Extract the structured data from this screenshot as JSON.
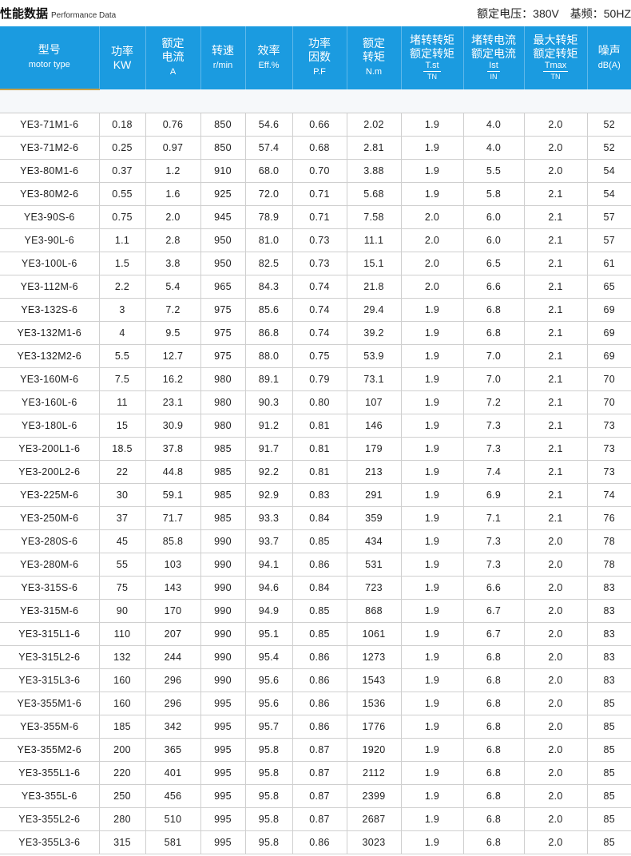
{
  "title": {
    "cn": "性能数据",
    "en": "Performance Data"
  },
  "spec": {
    "voltage": "额定电压：380V",
    "frequency": "基频：50HZ"
  },
  "header": [
    {
      "lines": [
        "型号"
      ],
      "unit": "motor type"
    },
    {
      "lines": [
        "功率",
        "KW"
      ],
      "unit": ""
    },
    {
      "lines": [
        "额定",
        "电流"
      ],
      "unit": "A"
    },
    {
      "lines": [
        "转速"
      ],
      "unit": "r/min"
    },
    {
      "lines": [
        "效率"
      ],
      "unit": "Eff.%"
    },
    {
      "lines": [
        "功率",
        "因数"
      ],
      "unit": "P.F"
    },
    {
      "lines": [
        "额定",
        "转矩"
      ],
      "unit": "N.m"
    },
    {
      "lines": [
        "堵转转矩",
        "额定转矩"
      ],
      "num": "T.st",
      "den": "TN"
    },
    {
      "lines": [
        "堵转电流",
        "额定电流"
      ],
      "num": "Ist",
      "den": "IN"
    },
    {
      "lines": [
        "最大转矩",
        "额定转矩"
      ],
      "num": "Tmax",
      "den": "TN"
    },
    {
      "lines": [
        "噪声"
      ],
      "unit": "dB(A)"
    }
  ],
  "rows": [
    [
      "YE3-71M1-6",
      "0.18",
      "0.76",
      "850",
      "54.6",
      "0.66",
      "2.02",
      "1.9",
      "4.0",
      "2.0",
      "52"
    ],
    [
      "YE3-71M2-6",
      "0.25",
      "0.97",
      "850",
      "57.4",
      "0.68",
      "2.81",
      "1.9",
      "4.0",
      "2.0",
      "52"
    ],
    [
      "YE3-80M1-6",
      "0.37",
      "1.2",
      "910",
      "68.0",
      "0.70",
      "3.88",
      "1.9",
      "5.5",
      "2.0",
      "54"
    ],
    [
      "YE3-80M2-6",
      "0.55",
      "1.6",
      "925",
      "72.0",
      "0.71",
      "5.68",
      "1.9",
      "5.8",
      "2.1",
      "54"
    ],
    [
      "YE3-90S-6",
      "0.75",
      "2.0",
      "945",
      "78.9",
      "0.71",
      "7.58",
      "2.0",
      "6.0",
      "2.1",
      "57"
    ],
    [
      "YE3-90L-6",
      "1.1",
      "2.8",
      "950",
      "81.0",
      "0.73",
      "11.1",
      "2.0",
      "6.0",
      "2.1",
      "57"
    ],
    [
      "YE3-100L-6",
      "1.5",
      "3.8",
      "950",
      "82.5",
      "0.73",
      "15.1",
      "2.0",
      "6.5",
      "2.1",
      "61"
    ],
    [
      "YE3-112M-6",
      "2.2",
      "5.4",
      "965",
      "84.3",
      "0.74",
      "21.8",
      "2.0",
      "6.6",
      "2.1",
      "65"
    ],
    [
      "YE3-132S-6",
      "3",
      "7.2",
      "975",
      "85.6",
      "0.74",
      "29.4",
      "1.9",
      "6.8",
      "2.1",
      "69"
    ],
    [
      "YE3-132M1-6",
      "4",
      "9.5",
      "975",
      "86.8",
      "0.74",
      "39.2",
      "1.9",
      "6.8",
      "2.1",
      "69"
    ],
    [
      "YE3-132M2-6",
      "5.5",
      "12.7",
      "975",
      "88.0",
      "0.75",
      "53.9",
      "1.9",
      "7.0",
      "2.1",
      "69"
    ],
    [
      "YE3-160M-6",
      "7.5",
      "16.2",
      "980",
      "89.1",
      "0.79",
      "73.1",
      "1.9",
      "7.0",
      "2.1",
      "70"
    ],
    [
      "YE3-160L-6",
      "11",
      "23.1",
      "980",
      "90.3",
      "0.80",
      "107",
      "1.9",
      "7.2",
      "2.1",
      "70"
    ],
    [
      "YE3-180L-6",
      "15",
      "30.9",
      "980",
      "91.2",
      "0.81",
      "146",
      "1.9",
      "7.3",
      "2.1",
      "73"
    ],
    [
      "YE3-200L1-6",
      "18.5",
      "37.8",
      "985",
      "91.7",
      "0.81",
      "179",
      "1.9",
      "7.3",
      "2.1",
      "73"
    ],
    [
      "YE3-200L2-6",
      "22",
      "44.8",
      "985",
      "92.2",
      "0.81",
      "213",
      "1.9",
      "7.4",
      "2.1",
      "73"
    ],
    [
      "YE3-225M-6",
      "30",
      "59.1",
      "985",
      "92.9",
      "0.83",
      "291",
      "1.9",
      "6.9",
      "2.1",
      "74"
    ],
    [
      "YE3-250M-6",
      "37",
      "71.7",
      "985",
      "93.3",
      "0.84",
      "359",
      "1.9",
      "7.1",
      "2.1",
      "76"
    ],
    [
      "YE3-280S-6",
      "45",
      "85.8",
      "990",
      "93.7",
      "0.85",
      "434",
      "1.9",
      "7.3",
      "2.0",
      "78"
    ],
    [
      "YE3-280M-6",
      "55",
      "103",
      "990",
      "94.1",
      "0.86",
      "531",
      "1.9",
      "7.3",
      "2.0",
      "78"
    ],
    [
      "YE3-315S-6",
      "75",
      "143",
      "990",
      "94.6",
      "0.84",
      "723",
      "1.9",
      "6.6",
      "2.0",
      "83"
    ],
    [
      "YE3-315M-6",
      "90",
      "170",
      "990",
      "94.9",
      "0.85",
      "868",
      "1.9",
      "6.7",
      "2.0",
      "83"
    ],
    [
      "YE3-315L1-6",
      "110",
      "207",
      "990",
      "95.1",
      "0.85",
      "1061",
      "1.9",
      "6.7",
      "2.0",
      "83"
    ],
    [
      "YE3-315L2-6",
      "132",
      "244",
      "990",
      "95.4",
      "0.86",
      "1273",
      "1.9",
      "6.8",
      "2.0",
      "83"
    ],
    [
      "YE3-315L3-6",
      "160",
      "296",
      "990",
      "95.6",
      "0.86",
      "1543",
      "1.9",
      "6.8",
      "2.0",
      "83"
    ],
    [
      "YE3-355M1-6",
      "160",
      "296",
      "995",
      "95.6",
      "0.86",
      "1536",
      "1.9",
      "6.8",
      "2.0",
      "85"
    ],
    [
      "YE3-355M-6",
      "185",
      "342",
      "995",
      "95.7",
      "0.86",
      "1776",
      "1.9",
      "6.8",
      "2.0",
      "85"
    ],
    [
      "YE3-355M2-6",
      "200",
      "365",
      "995",
      "95.8",
      "0.87",
      "1920",
      "1.9",
      "6.8",
      "2.0",
      "85"
    ],
    [
      "YE3-355L1-6",
      "220",
      "401",
      "995",
      "95.8",
      "0.87",
      "2112",
      "1.9",
      "6.8",
      "2.0",
      "85"
    ],
    [
      "YE3-355L-6",
      "250",
      "456",
      "995",
      "95.8",
      "0.87",
      "2399",
      "1.9",
      "6.8",
      "2.0",
      "85"
    ],
    [
      "YE3-355L2-6",
      "280",
      "510",
      "995",
      "95.8",
      "0.87",
      "2687",
      "1.9",
      "6.8",
      "2.0",
      "85"
    ],
    [
      "YE3-355L3-6",
      "315",
      "581",
      "995",
      "95.8",
      "0.86",
      "3023",
      "1.9",
      "6.8",
      "2.0",
      "85"
    ]
  ]
}
